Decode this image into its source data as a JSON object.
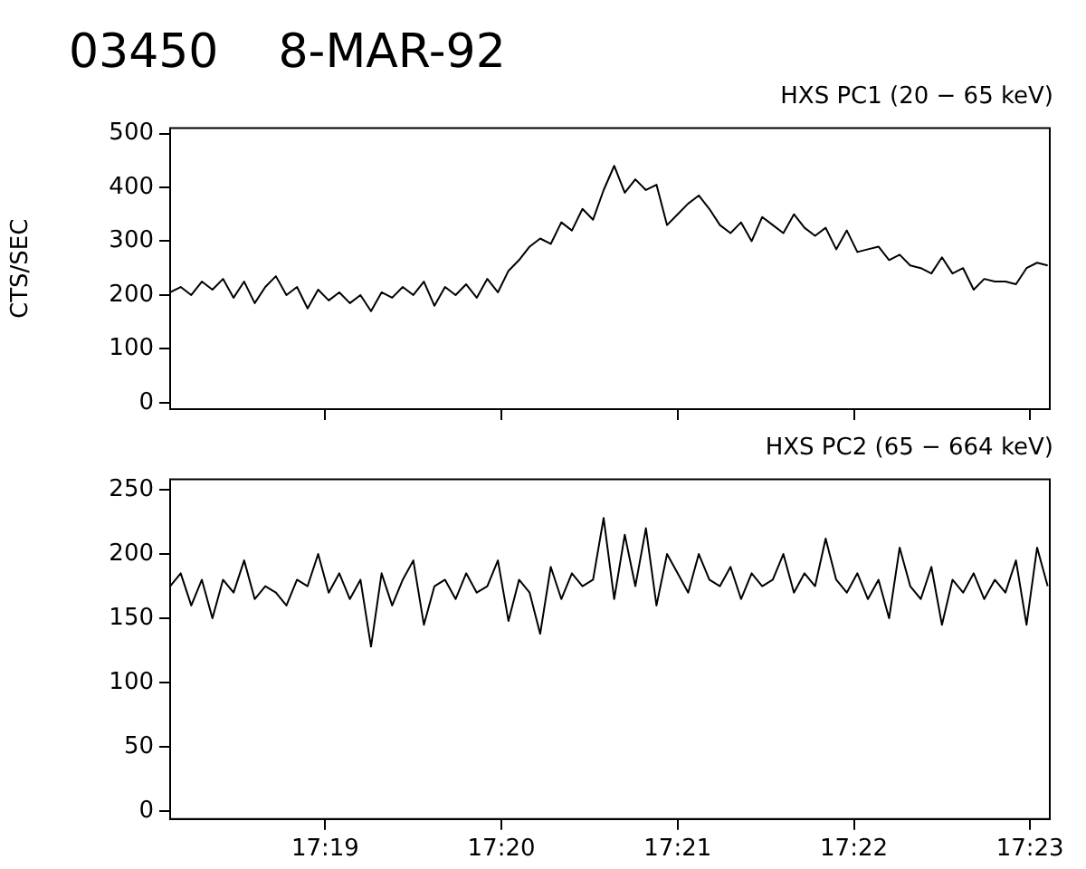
{
  "chart_data": [
    {
      "type": "line",
      "title": "03450    8-MAR-92",
      "subtitle": "HXS PC1 (20 − 65 keV)",
      "ylabel": "CTS/SEC",
      "x": [
        17.302,
        17.303,
        17.304,
        17.305,
        17.306,
        17.307,
        17.308,
        17.309,
        17.31,
        17.311,
        17.312,
        17.313,
        17.314,
        17.315,
        17.316,
        17.317,
        17.318,
        17.319,
        17.32,
        17.321,
        17.322,
        17.323,
        17.324,
        17.325,
        17.326,
        17.327,
        17.328,
        17.329,
        17.33,
        17.331,
        17.332,
        17.333,
        17.334,
        17.335,
        17.336,
        17.337,
        17.338,
        17.339,
        17.34,
        17.341,
        17.342,
        17.343,
        17.344,
        17.345,
        17.346,
        17.347,
        17.348,
        17.349,
        17.35,
        17.351,
        17.352,
        17.353,
        17.354,
        17.355,
        17.356,
        17.357,
        17.358,
        17.359,
        17.36,
        17.361,
        17.362,
        17.363,
        17.364,
        17.365,
        17.366,
        17.367,
        17.368,
        17.369,
        17.37,
        17.371,
        17.372,
        17.373,
        17.374,
        17.375,
        17.376,
        17.377,
        17.378,
        17.379,
        17.38,
        17.381,
        17.382,
        17.383,
        17.384,
        17.385
      ],
      "series": [
        {
          "color": "#000000",
          "values": [
            205,
            215,
            200,
            225,
            210,
            230,
            195,
            225,
            185,
            215,
            235,
            200,
            215,
            175,
            210,
            190,
            205,
            185,
            200,
            170,
            205,
            195,
            215,
            200,
            225,
            180,
            215,
            200,
            220,
            195,
            230,
            205,
            245,
            265,
            290,
            305,
            295,
            335,
            320,
            360,
            340,
            395,
            440,
            390,
            415,
            395,
            405,
            330,
            350,
            370,
            385,
            360,
            330,
            315,
            335,
            300,
            345,
            330,
            315,
            350,
            325,
            310,
            325,
            285,
            320,
            280,
            285,
            290,
            265,
            275,
            255,
            250,
            240,
            270,
            240,
            250,
            210,
            230,
            225,
            225,
            220,
            250,
            260,
            255
          ]
        }
      ],
      "xlim": [
        17.302,
        17.3852
      ],
      "xticks": [
        {
          "value": 17.31667,
          "label": null
        },
        {
          "value": 17.33333,
          "label": null
        },
        {
          "value": 17.35,
          "label": null
        },
        {
          "value": 17.36667,
          "label": null
        },
        {
          "value": 17.38333,
          "label": null
        }
      ],
      "ylim": [
        -12,
        510
      ],
      "yticks": [
        0,
        100,
        200,
        300,
        400,
        500
      ],
      "tick_labels": "y",
      "marker": "none"
    },
    {
      "type": "line",
      "subtitle": "HXS PC2 (65 − 664 keV)",
      "x": [
        17.302,
        17.303,
        17.304,
        17.305,
        17.306,
        17.307,
        17.308,
        17.309,
        17.31,
        17.311,
        17.312,
        17.313,
        17.314,
        17.315,
        17.316,
        17.317,
        17.318,
        17.319,
        17.32,
        17.321,
        17.322,
        17.323,
        17.324,
        17.325,
        17.326,
        17.327,
        17.328,
        17.329,
        17.33,
        17.331,
        17.332,
        17.333,
        17.334,
        17.335,
        17.336,
        17.337,
        17.338,
        17.339,
        17.34,
        17.341,
        17.342,
        17.343,
        17.344,
        17.345,
        17.346,
        17.347,
        17.348,
        17.349,
        17.35,
        17.351,
        17.352,
        17.353,
        17.354,
        17.355,
        17.356,
        17.357,
        17.358,
        17.359,
        17.36,
        17.361,
        17.362,
        17.363,
        17.364,
        17.365,
        17.366,
        17.367,
        17.368,
        17.369,
        17.37,
        17.371,
        17.372,
        17.373,
        17.374,
        17.375,
        17.376,
        17.377,
        17.378,
        17.379,
        17.38,
        17.381,
        17.382,
        17.383,
        17.384,
        17.385
      ],
      "series": [
        {
          "color": "#000000",
          "values": [
            175,
            185,
            160,
            180,
            150,
            180,
            170,
            195,
            165,
            175,
            170,
            160,
            180,
            175,
            200,
            170,
            185,
            165,
            180,
            128,
            185,
            160,
            180,
            195,
            145,
            175,
            180,
            165,
            185,
            170,
            175,
            195,
            148,
            180,
            170,
            138,
            190,
            165,
            185,
            175,
            180,
            228,
            165,
            215,
            175,
            220,
            160,
            200,
            185,
            170,
            200,
            180,
            175,
            190,
            165,
            185,
            175,
            180,
            200,
            170,
            185,
            175,
            212,
            180,
            170,
            185,
            165,
            180,
            150,
            205,
            175,
            165,
            190,
            145,
            180,
            170,
            185,
            165,
            180,
            170,
            195,
            145,
            205,
            175
          ]
        }
      ],
      "xlim": [
        17.302,
        17.3852
      ],
      "xticks": [
        {
          "value": 17.31667,
          "label": "17:19"
        },
        {
          "value": 17.33333,
          "label": "17:20"
        },
        {
          "value": 17.35,
          "label": "17:21"
        },
        {
          "value": 17.36667,
          "label": "17:22"
        },
        {
          "value": 17.38333,
          "label": "17:23"
        }
      ],
      "ylim": [
        -6,
        258
      ],
      "yticks": [
        0,
        50,
        100,
        150,
        200,
        250
      ],
      "marker": "none"
    }
  ]
}
